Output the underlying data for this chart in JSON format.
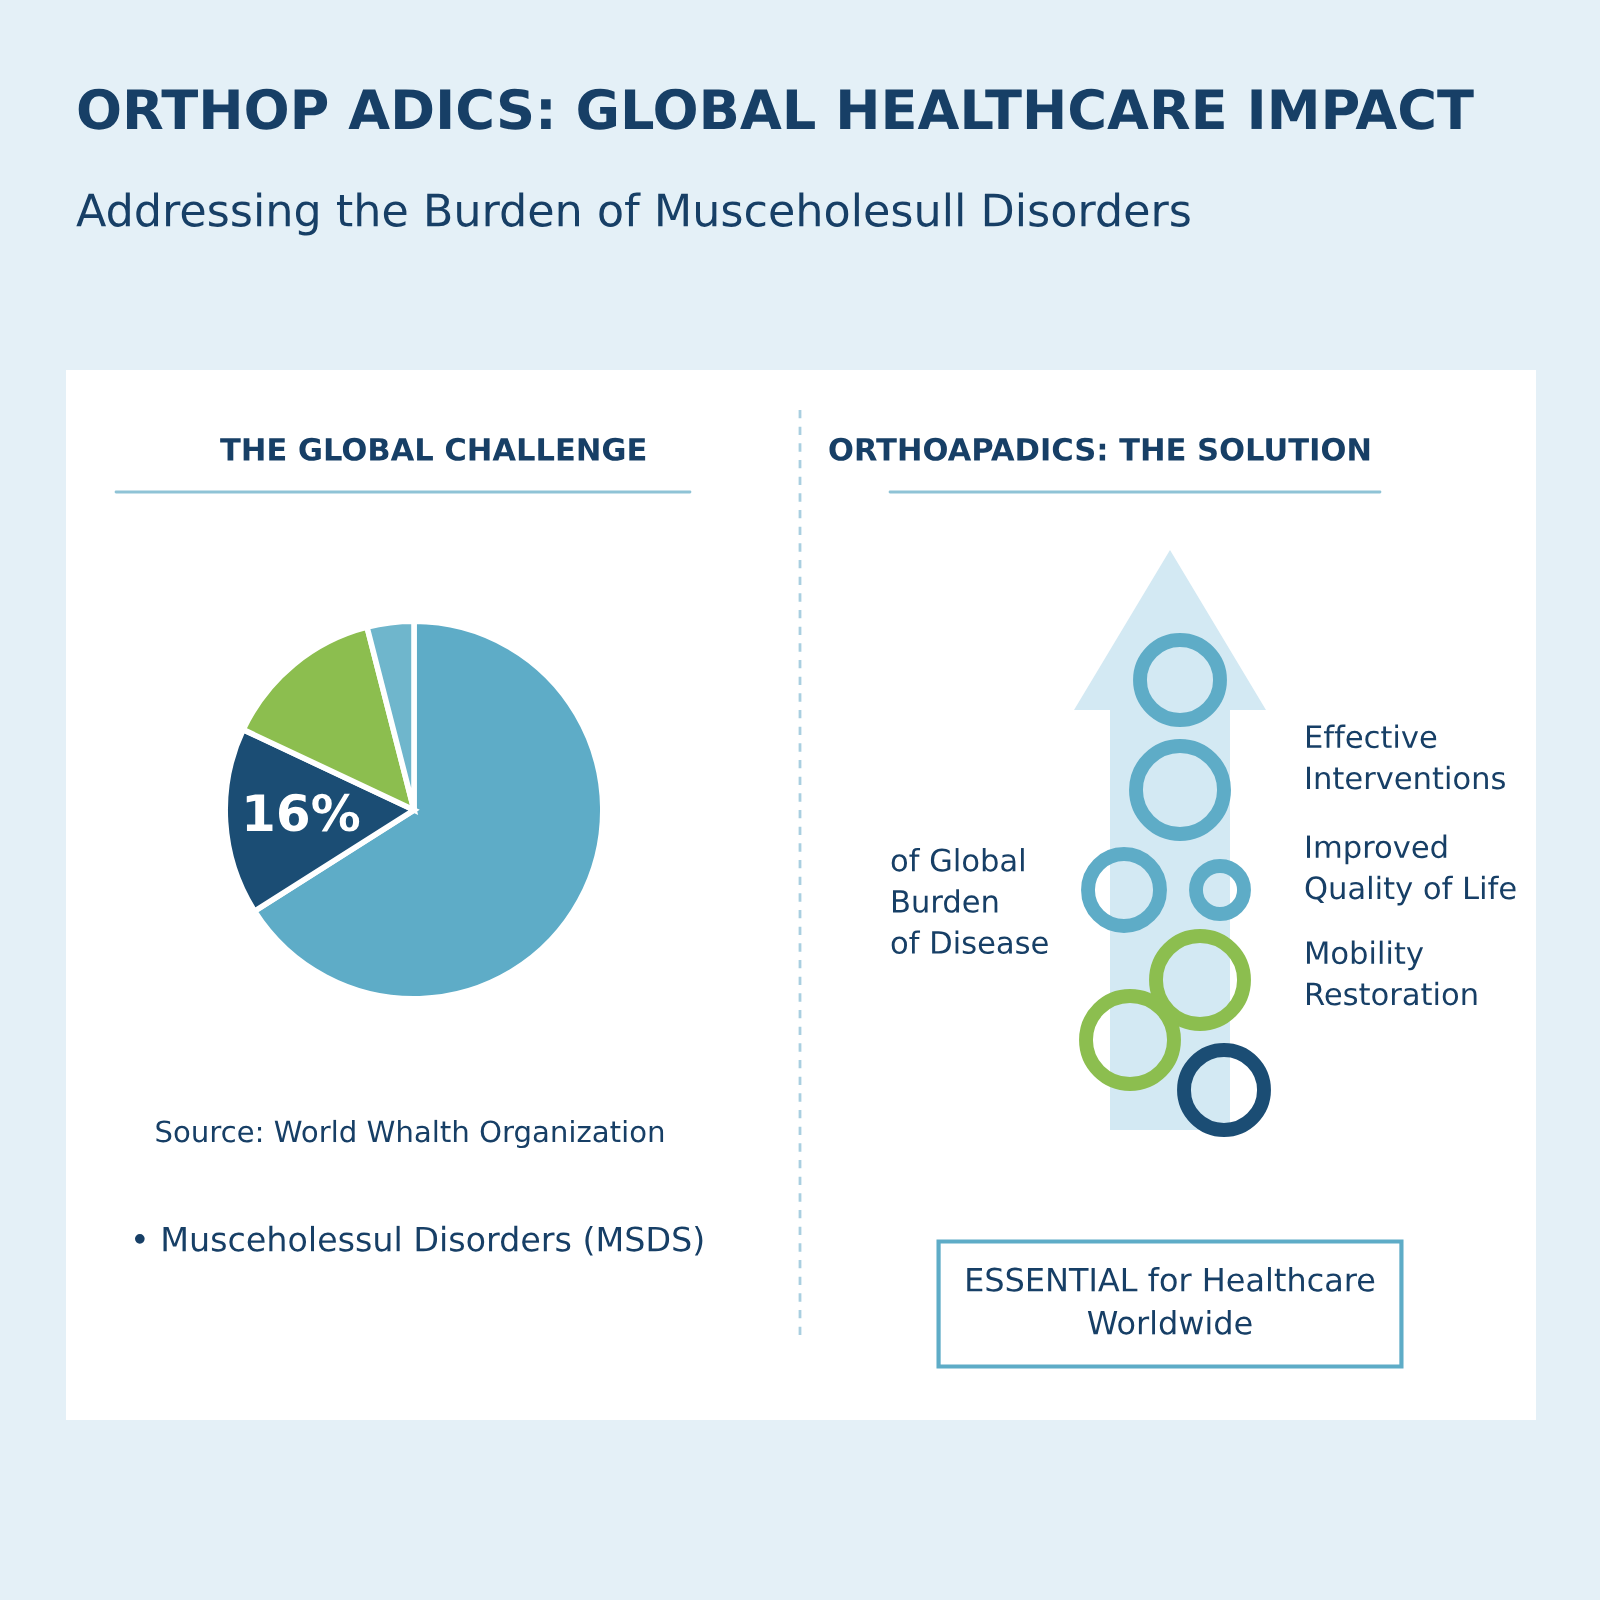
{
  "chart_data": [
    {
      "type": "other",
      "title": "ORTHOP ADICS: GLOBAL HEALTHCARE IMPACT",
      "subtitle": "Addressing the Burden of Musceholesull Disorders"
    },
    {
      "type": "pie",
      "title": "THE GLOBAL CHALLENGE",
      "categories": [
        null,
        null,
        null,
        null
      ],
      "values": [
        66,
        16,
        14,
        4
      ],
      "colors": [
        "#5eacc7",
        "#1b4d74",
        "#8cbe4f",
        "#6fb6cc"
      ],
      "value_labels": [
        null,
        "16%",
        null,
        null
      ],
      "annotations": [
        "Source: World Whalth Organization",
        "• Musceholessul Disorders (MSDS)"
      ]
    },
    {
      "type": "other",
      "title": "ORTHOAPADICS: THE SOLUTION",
      "annotations": [
        "Effective\nInterventions",
        "Improved\nQuality of Life",
        "Mobility\nRestoration",
        "of Global\nBurden\nof Disease",
        "ESSENTIAL for Healthcare\nWorldwide"
      ]
    }
  ]
}
